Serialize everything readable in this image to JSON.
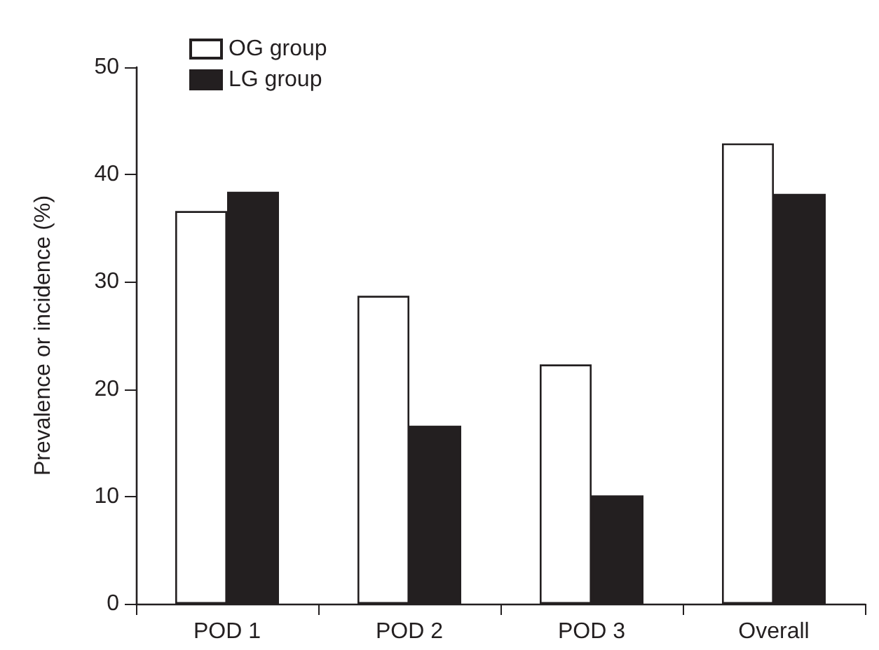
{
  "chart_data": {
    "type": "bar",
    "ylabel": "Prevalence or incidence (%)",
    "categories": [
      "POD 1",
      "POD 2",
      "POD 3",
      "Overall"
    ],
    "series": [
      {
        "name": "OG group",
        "color": "#ffffff",
        "values": [
          36.6,
          28.7,
          22.3,
          42.9
        ]
      },
      {
        "name": "LG group",
        "color": "#231f20",
        "values": [
          38.4,
          16.6,
          10.1,
          38.2
        ]
      }
    ],
    "ylim": [
      0,
      50
    ],
    "yticks": [
      0,
      10,
      20,
      30,
      40,
      50
    ],
    "grid": false,
    "legend": "top left"
  }
}
